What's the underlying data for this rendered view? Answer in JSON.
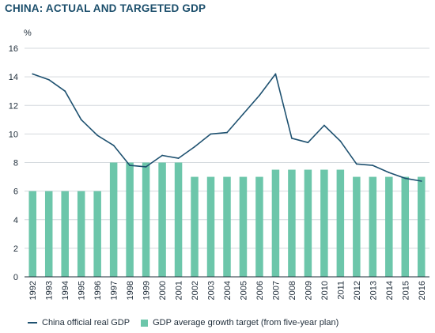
{
  "chart_data": {
    "type": "bar",
    "title": "CHINA: ACTUAL AND TARGETED GDP",
    "ylabel": "%",
    "xlabel": "",
    "ylim": [
      0,
      16
    ],
    "yticks": [
      0,
      2,
      4,
      6,
      8,
      10,
      12,
      14,
      16
    ],
    "grid": true,
    "legend_position": "bottom",
    "categories": [
      "1992",
      "1993",
      "1994",
      "1995",
      "1996",
      "1997",
      "1998",
      "1999",
      "2000",
      "2001",
      "2002",
      "2003",
      "2004",
      "2005",
      "2006",
      "2007",
      "2008",
      "2009",
      "2010",
      "2011",
      "2012",
      "2013",
      "2014",
      "2015",
      "2016"
    ],
    "series": [
      {
        "name": "China official real GDP",
        "kind": "line",
        "color": "#1e5170",
        "values": [
          14.2,
          13.8,
          13.0,
          11.0,
          9.9,
          9.2,
          7.8,
          7.7,
          8.5,
          8.3,
          9.1,
          10.0,
          10.1,
          11.4,
          12.7,
          14.2,
          9.7,
          9.4,
          10.6,
          9.5,
          7.9,
          7.8,
          7.3,
          6.9,
          6.7
        ]
      },
      {
        "name": "GDP average growth target (from five-year plan)",
        "kind": "bar",
        "color": "#6cc6aa",
        "values": [
          6,
          6,
          6,
          6,
          6,
          8,
          8,
          8,
          8,
          8,
          7,
          7,
          7,
          7,
          7,
          7.5,
          7.5,
          7.5,
          7.5,
          7.5,
          7,
          7,
          7,
          7,
          7
        ]
      }
    ]
  }
}
